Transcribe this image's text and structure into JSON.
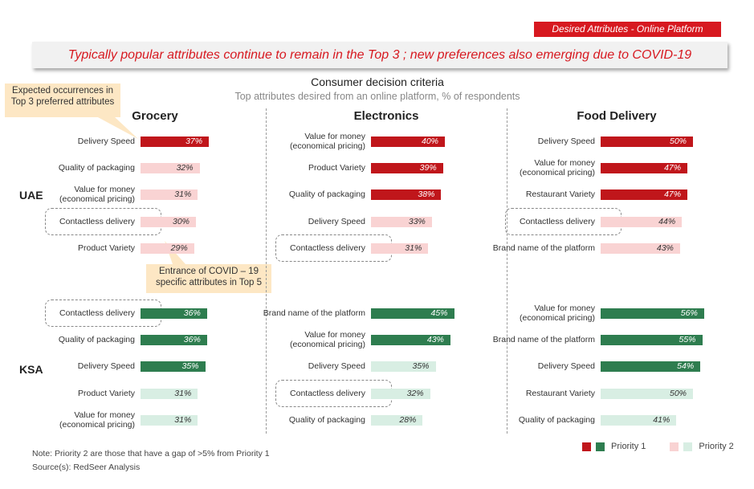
{
  "tag": "Desired Attributes - Online Platform",
  "headline": "Typically popular attributes continue to remain in the Top 3 ; new preferences also emerging due to  COVID-19",
  "callouts": {
    "top": "Expected occurrences in Top 3 preferred attributes",
    "mid": "Entrance of COVID – 19 specific attributes in Top 5"
  },
  "note": "Note: Priority 2 are those that have a gap of >5% from Priority 1",
  "source": "Source(s): RedSeer Analysis",
  "legend": {
    "priority1": "Priority 1",
    "priority2": "Priority 2"
  },
  "colors": {
    "uae_p1": "#c0161b",
    "uae_p2": "#f9d3d3",
    "ksa_p1": "#2e7d4f",
    "ksa_p2": "#d8eee3",
    "accent": "#d71920"
  },
  "chart_data": {
    "type": "bar",
    "title": "Consumer decision criteria",
    "subtitle": "Top attributes desired from an online platform, % of respondents",
    "value_suffix": "%",
    "columns": [
      "Grocery",
      "Electronics",
      "Food Delivery"
    ],
    "regions": [
      "UAE",
      "KSA"
    ],
    "panels": [
      {
        "region": "UAE",
        "column": "Grocery",
        "bars": [
          {
            "label": "Delivery Speed",
            "value": 37,
            "priority": 1
          },
          {
            "label": "Quality of packaging",
            "value": 32,
            "priority": 2
          },
          {
            "label": "Value for money (economical pricing)",
            "value": 31,
            "priority": 2
          },
          {
            "label": "Contactless delivery",
            "value": 30,
            "priority": 2,
            "highlight": true
          },
          {
            "label": "Product Variety",
            "value": 29,
            "priority": 2
          }
        ]
      },
      {
        "region": "UAE",
        "column": "Electronics",
        "bars": [
          {
            "label": "Value for money (economical pricing)",
            "value": 40,
            "priority": 1
          },
          {
            "label": "Product Variety",
            "value": 39,
            "priority": 1
          },
          {
            "label": "Quality of packaging",
            "value": 38,
            "priority": 1
          },
          {
            "label": "Delivery Speed",
            "value": 33,
            "priority": 2
          },
          {
            "label": "Contactless delivery",
            "value": 31,
            "priority": 2,
            "highlight": true
          }
        ]
      },
      {
        "region": "UAE",
        "column": "Food Delivery",
        "bars": [
          {
            "label": "Delivery Speed",
            "value": 50,
            "priority": 1
          },
          {
            "label": "Value for money (economical pricing)",
            "value": 47,
            "priority": 1
          },
          {
            "label": "Restaurant Variety",
            "value": 47,
            "priority": 1
          },
          {
            "label": "Contactless delivery",
            "value": 44,
            "priority": 2,
            "highlight": true
          },
          {
            "label": "Brand name of the platform",
            "value": 43,
            "priority": 2
          }
        ]
      },
      {
        "region": "KSA",
        "column": "Grocery",
        "bars": [
          {
            "label": "Contactless delivery",
            "value": 36,
            "priority": 1,
            "highlight": true
          },
          {
            "label": "Quality of packaging",
            "value": 36,
            "priority": 1
          },
          {
            "label": "Delivery Speed",
            "value": 35,
            "priority": 1
          },
          {
            "label": "Product Variety",
            "value": 31,
            "priority": 2
          },
          {
            "label": "Value for money (economical pricing)",
            "value": 31,
            "priority": 2
          }
        ]
      },
      {
        "region": "KSA",
        "column": "Electronics",
        "bars": [
          {
            "label": "Brand name of the platform",
            "value": 45,
            "priority": 1
          },
          {
            "label": "Value for money (economical pricing)",
            "value": 43,
            "priority": 1
          },
          {
            "label": "Delivery Speed",
            "value": 35,
            "priority": 2
          },
          {
            "label": "Contactless delivery",
            "value": 32,
            "priority": 2,
            "highlight": true
          },
          {
            "label": "Quality of packaging",
            "value": 28,
            "priority": 2
          }
        ]
      },
      {
        "region": "KSA",
        "column": "Food Delivery",
        "bars": [
          {
            "label": "Value for money (economical pricing)",
            "value": 56,
            "priority": 1
          },
          {
            "label": "Brand name of the platform",
            "value": 55,
            "priority": 1
          },
          {
            "label": "Delivery Speed",
            "value": 54,
            "priority": 1
          },
          {
            "label": "Restaurant Variety",
            "value": 50,
            "priority": 2
          },
          {
            "label": "Quality of packaging",
            "value": 41,
            "priority": 2
          }
        ]
      }
    ]
  }
}
